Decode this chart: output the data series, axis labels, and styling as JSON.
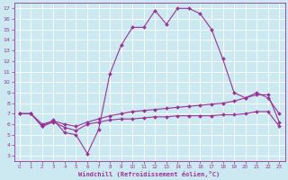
{
  "xlabel": "Windchill (Refroidissement éolien,°C)",
  "background_color": "#cce8f0",
  "line_color": "#993399",
  "grid_color": "#ffffff",
  "xlim": [
    -0.5,
    23.5
  ],
  "ylim": [
    2.5,
    17.5
  ],
  "xticks": [
    0,
    1,
    2,
    3,
    4,
    5,
    6,
    7,
    8,
    9,
    10,
    11,
    12,
    13,
    14,
    15,
    16,
    17,
    18,
    19,
    20,
    21,
    22,
    23
  ],
  "yticks": [
    3,
    4,
    5,
    6,
    7,
    8,
    9,
    10,
    11,
    12,
    13,
    14,
    15,
    16,
    17
  ],
  "curve1_x": [
    0,
    1,
    2,
    3,
    4,
    5,
    6,
    7,
    8,
    9,
    10,
    11,
    12,
    13,
    14,
    15,
    16,
    17,
    18,
    19,
    20,
    21,
    22,
    23
  ],
  "curve1_y": [
    7.0,
    7.0,
    5.8,
    6.4,
    5.2,
    5.0,
    3.2,
    5.5,
    10.8,
    13.5,
    15.2,
    15.2,
    16.8,
    15.5,
    17.0,
    17.0,
    16.5,
    15.0,
    12.2,
    9.0,
    8.5,
    9.0,
    8.5,
    7.0
  ],
  "curve2_x": [
    0,
    1,
    2,
    3,
    4,
    5,
    6,
    7,
    8,
    9,
    10,
    11,
    12,
    13,
    14,
    15,
    16,
    17,
    18,
    19,
    20,
    21,
    22,
    23
  ],
  "curve2_y": [
    7.0,
    7.0,
    6.0,
    6.3,
    6.0,
    5.8,
    6.2,
    6.5,
    6.8,
    7.0,
    7.2,
    7.3,
    7.4,
    7.5,
    7.6,
    7.7,
    7.8,
    7.9,
    8.0,
    8.2,
    8.5,
    8.8,
    8.8,
    6.2
  ],
  "curve3_x": [
    0,
    1,
    2,
    3,
    4,
    5,
    6,
    7,
    8,
    9,
    10,
    11,
    12,
    13,
    14,
    15,
    16,
    17,
    18,
    19,
    20,
    21,
    22,
    23
  ],
  "curve3_y": [
    7.0,
    7.0,
    5.8,
    6.2,
    5.7,
    5.4,
    6.0,
    6.2,
    6.4,
    6.5,
    6.5,
    6.6,
    6.7,
    6.7,
    6.8,
    6.8,
    6.8,
    6.8,
    6.9,
    6.9,
    7.0,
    7.2,
    7.2,
    5.8
  ]
}
